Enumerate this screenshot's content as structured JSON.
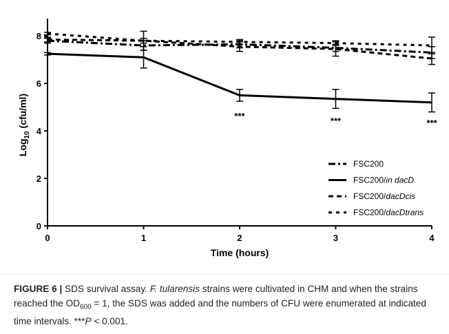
{
  "chart_data": {
    "type": "line",
    "xlabel": "Time (hours)",
    "ylabel_main": "Log",
    "ylabel_sub": "10",
    "ylabel_rest": " (cfu/ml)",
    "x": [
      0,
      1,
      2,
      3,
      4
    ],
    "xlim": [
      0,
      4
    ],
    "ylim": [
      0,
      8.5
    ],
    "x_ticks": [
      0,
      1,
      2,
      3,
      4
    ],
    "y_ticks": [
      0,
      2,
      4,
      6,
      8
    ],
    "grid": false,
    "legend_position": "bottom-right",
    "series": [
      {
        "name": "FSC200",
        "dash": "dashdot",
        "values": [
          7.8,
          7.6,
          7.65,
          7.5,
          7.3
        ],
        "errors": [
          0.1,
          0.2,
          0.15,
          0.15,
          0.25
        ]
      },
      {
        "name": "FSC200/",
        "name_italic": "in dacD",
        "dash": "solid",
        "values": [
          7.25,
          7.1,
          5.5,
          5.35,
          5.2
        ],
        "errors": [
          0.05,
          0.45,
          0.25,
          0.4,
          0.4
        ]
      },
      {
        "name": "FSC200/",
        "name_italic": "dacDcis",
        "dash": "dash",
        "values": [
          7.85,
          7.8,
          7.55,
          7.45,
          7.05
        ],
        "errors": [
          0.1,
          0.4,
          0.2,
          0.3,
          0.25
        ]
      },
      {
        "name": "FSC200/",
        "name_italic": "dacDtrans",
        "dash": "shortdash",
        "values": [
          8.1,
          7.8,
          7.75,
          7.7,
          7.6
        ],
        "errors": [
          0.05,
          0.1,
          0.1,
          0.1,
          0.35
        ]
      }
    ],
    "annotations": [
      {
        "x": 2,
        "y": 4.5,
        "text": "***"
      },
      {
        "x": 3,
        "y": 4.3,
        "text": "***"
      },
      {
        "x": 4,
        "y": 4.2,
        "text": "***"
      }
    ]
  },
  "caption": {
    "label": "FIGURE 6 |",
    "part1": " SDS survival assay. ",
    "species": "F. tularensis",
    "part2": " strains were cultivated in CHM and when the strains reached the OD",
    "od_sub": "600",
    "part3": " = 1, the SDS was added and the numbers of CFU were enumerated at indicated time intervals. ***",
    "p_italic": "P",
    "part4": " < 0.001."
  }
}
